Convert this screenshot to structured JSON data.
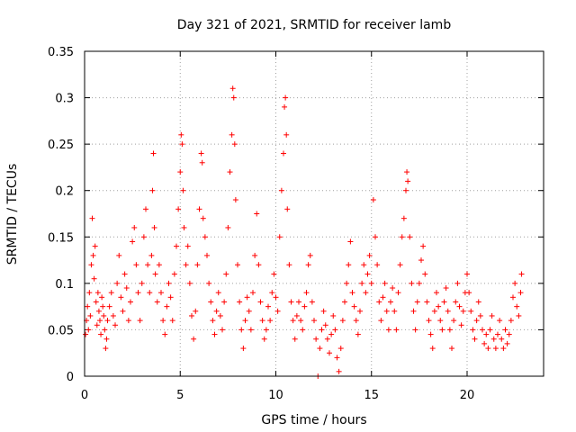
{
  "chart_data": {
    "type": "scatter",
    "title": "Day 321 of 2021, SRMTID for receiver lamb",
    "xlabel": "GPS time / hours",
    "ylabel": "SRMTID / TECUs",
    "xlim": [
      0,
      24
    ],
    "ylim": [
      0,
      0.35
    ],
    "xticks": [
      0,
      5,
      10,
      15,
      20
    ],
    "xtick_labels": [
      "0",
      "5",
      "10",
      "15",
      "20"
    ],
    "yticks": [
      0,
      0.05,
      0.1,
      0.15,
      0.2,
      0.25,
      0.3,
      0.35
    ],
    "ytick_labels": [
      "0",
      "0.05",
      "0.1",
      "0.15",
      "0.2",
      "0.25",
      "0.3",
      "0.35"
    ],
    "grid": true,
    "marker": "+",
    "color": "#ff0000",
    "series": [
      {
        "name": "SRMTID",
        "points": [
          [
            0.05,
            0.045
          ],
          [
            0.1,
            0.06
          ],
          [
            0.15,
            0.075
          ],
          [
            0.2,
            0.05
          ],
          [
            0.25,
            0.09
          ],
          [
            0.3,
            0.065
          ],
          [
            0.35,
            0.12
          ],
          [
            0.4,
            0.17
          ],
          [
            0.45,
            0.13
          ],
          [
            0.5,
            0.105
          ],
          [
            0.55,
            0.14
          ],
          [
            0.6,
            0.08
          ],
          [
            0.65,
            0.055
          ],
          [
            0.7,
            0.09
          ],
          [
            0.75,
            0.07
          ],
          [
            0.8,
            0.06
          ],
          [
            0.85,
            0.045
          ],
          [
            0.9,
            0.085
          ],
          [
            0.95,
            0.075
          ],
          [
            1.0,
            0.065
          ],
          [
            1.05,
            0.05
          ],
          [
            1.1,
            0.03
          ],
          [
            1.15,
            0.04
          ],
          [
            1.2,
            0.06
          ],
          [
            1.3,
            0.075
          ],
          [
            1.4,
            0.09
          ],
          [
            1.5,
            0.065
          ],
          [
            1.6,
            0.055
          ],
          [
            1.7,
            0.1
          ],
          [
            1.8,
            0.13
          ],
          [
            1.9,
            0.085
          ],
          [
            2.0,
            0.07
          ],
          [
            2.1,
            0.11
          ],
          [
            2.2,
            0.095
          ],
          [
            2.3,
            0.06
          ],
          [
            2.4,
            0.08
          ],
          [
            2.5,
            0.145
          ],
          [
            2.6,
            0.16
          ],
          [
            2.7,
            0.12
          ],
          [
            2.8,
            0.09
          ],
          [
            2.9,
            0.06
          ],
          [
            3.0,
            0.1
          ],
          [
            3.1,
            0.15
          ],
          [
            3.2,
            0.18
          ],
          [
            3.3,
            0.12
          ],
          [
            3.4,
            0.09
          ],
          [
            3.5,
            0.13
          ],
          [
            3.55,
            0.2
          ],
          [
            3.6,
            0.24
          ],
          [
            3.65,
            0.16
          ],
          [
            3.7,
            0.11
          ],
          [
            3.8,
            0.08
          ],
          [
            3.9,
            0.12
          ],
          [
            4.0,
            0.09
          ],
          [
            4.1,
            0.06
          ],
          [
            4.2,
            0.045
          ],
          [
            4.3,
            0.075
          ],
          [
            4.4,
            0.1
          ],
          [
            4.5,
            0.085
          ],
          [
            4.6,
            0.06
          ],
          [
            4.7,
            0.11
          ],
          [
            4.8,
            0.14
          ],
          [
            4.9,
            0.18
          ],
          [
            5.0,
            0.22
          ],
          [
            5.05,
            0.26
          ],
          [
            5.1,
            0.25
          ],
          [
            5.15,
            0.2
          ],
          [
            5.2,
            0.16
          ],
          [
            5.3,
            0.12
          ],
          [
            5.4,
            0.14
          ],
          [
            5.5,
            0.1
          ],
          [
            5.6,
            0.065
          ],
          [
            5.7,
            0.04
          ],
          [
            5.8,
            0.07
          ],
          [
            5.9,
            0.12
          ],
          [
            6.0,
            0.18
          ],
          [
            6.1,
            0.24
          ],
          [
            6.15,
            0.23
          ],
          [
            6.2,
            0.17
          ],
          [
            6.3,
            0.15
          ],
          [
            6.4,
            0.13
          ],
          [
            6.5,
            0.1
          ],
          [
            6.6,
            0.08
          ],
          [
            6.7,
            0.06
          ],
          [
            6.8,
            0.045
          ],
          [
            6.9,
            0.07
          ],
          [
            7.0,
            0.09
          ],
          [
            7.1,
            0.065
          ],
          [
            7.2,
            0.05
          ],
          [
            7.3,
            0.08
          ],
          [
            7.4,
            0.11
          ],
          [
            7.5,
            0.16
          ],
          [
            7.6,
            0.22
          ],
          [
            7.7,
            0.26
          ],
          [
            7.75,
            0.31
          ],
          [
            7.8,
            0.3
          ],
          [
            7.85,
            0.25
          ],
          [
            7.9,
            0.19
          ],
          [
            8.0,
            0.12
          ],
          [
            8.1,
            0.08
          ],
          [
            8.2,
            0.05
          ],
          [
            8.3,
            0.03
          ],
          [
            8.4,
            0.06
          ],
          [
            8.5,
            0.085
          ],
          [
            8.6,
            0.07
          ],
          [
            8.7,
            0.05
          ],
          [
            8.8,
            0.09
          ],
          [
            8.9,
            0.13
          ],
          [
            9.0,
            0.175
          ],
          [
            9.1,
            0.12
          ],
          [
            9.2,
            0.08
          ],
          [
            9.3,
            0.06
          ],
          [
            9.4,
            0.04
          ],
          [
            9.5,
            0.05
          ],
          [
            9.6,
            0.075
          ],
          [
            9.7,
            0.06
          ],
          [
            9.8,
            0.09
          ],
          [
            9.9,
            0.11
          ],
          [
            10.0,
            0.085
          ],
          [
            10.1,
            0.07
          ],
          [
            10.2,
            0.15
          ],
          [
            10.3,
            0.2
          ],
          [
            10.4,
            0.24
          ],
          [
            10.45,
            0.29
          ],
          [
            10.5,
            0.3
          ],
          [
            10.55,
            0.26
          ],
          [
            10.6,
            0.18
          ],
          [
            10.7,
            0.12
          ],
          [
            10.8,
            0.08
          ],
          [
            10.9,
            0.06
          ],
          [
            11.0,
            0.04
          ],
          [
            11.1,
            0.065
          ],
          [
            11.2,
            0.08
          ],
          [
            11.3,
            0.06
          ],
          [
            11.4,
            0.05
          ],
          [
            11.5,
            0.075
          ],
          [
            11.6,
            0.09
          ],
          [
            11.7,
            0.12
          ],
          [
            11.8,
            0.13
          ],
          [
            11.9,
            0.08
          ],
          [
            12.0,
            0.06
          ],
          [
            12.1,
            0.04
          ],
          [
            12.2,
            0.0
          ],
          [
            12.3,
            0.03
          ],
          [
            12.4,
            0.05
          ],
          [
            12.5,
            0.07
          ],
          [
            12.6,
            0.055
          ],
          [
            12.7,
            0.04
          ],
          [
            12.8,
            0.025
          ],
          [
            12.9,
            0.045
          ],
          [
            13.0,
            0.065
          ],
          [
            13.1,
            0.05
          ],
          [
            13.2,
            0.02
          ],
          [
            13.3,
            0.005
          ],
          [
            13.4,
            0.03
          ],
          [
            13.5,
            0.06
          ],
          [
            13.6,
            0.08
          ],
          [
            13.7,
            0.1
          ],
          [
            13.8,
            0.12
          ],
          [
            13.9,
            0.145
          ],
          [
            14.0,
            0.09
          ],
          [
            14.1,
            0.075
          ],
          [
            14.2,
            0.06
          ],
          [
            14.3,
            0.045
          ],
          [
            14.4,
            0.07
          ],
          [
            14.5,
            0.1
          ],
          [
            14.6,
            0.12
          ],
          [
            14.7,
            0.09
          ],
          [
            14.8,
            0.11
          ],
          [
            14.9,
            0.13
          ],
          [
            15.0,
            0.1
          ],
          [
            15.1,
            0.19
          ],
          [
            15.2,
            0.15
          ],
          [
            15.3,
            0.12
          ],
          [
            15.4,
            0.08
          ],
          [
            15.5,
            0.06
          ],
          [
            15.6,
            0.085
          ],
          [
            15.7,
            0.1
          ],
          [
            15.8,
            0.07
          ],
          [
            15.9,
            0.05
          ],
          [
            16.0,
            0.08
          ],
          [
            16.1,
            0.095
          ],
          [
            16.2,
            0.07
          ],
          [
            16.3,
            0.05
          ],
          [
            16.4,
            0.09
          ],
          [
            16.5,
            0.12
          ],
          [
            16.6,
            0.15
          ],
          [
            16.7,
            0.17
          ],
          [
            16.8,
            0.2
          ],
          [
            16.85,
            0.22
          ],
          [
            16.9,
            0.21
          ],
          [
            17.0,
            0.15
          ],
          [
            17.1,
            0.1
          ],
          [
            17.2,
            0.07
          ],
          [
            17.3,
            0.05
          ],
          [
            17.4,
            0.08
          ],
          [
            17.5,
            0.1
          ],
          [
            17.6,
            0.125
          ],
          [
            17.7,
            0.14
          ],
          [
            17.8,
            0.11
          ],
          [
            17.9,
            0.08
          ],
          [
            18.0,
            0.06
          ],
          [
            18.1,
            0.045
          ],
          [
            18.2,
            0.03
          ],
          [
            18.3,
            0.07
          ],
          [
            18.4,
            0.09
          ],
          [
            18.5,
            0.075
          ],
          [
            18.6,
            0.06
          ],
          [
            18.7,
            0.05
          ],
          [
            18.8,
            0.08
          ],
          [
            18.9,
            0.095
          ],
          [
            19.0,
            0.07
          ],
          [
            19.1,
            0.05
          ],
          [
            19.2,
            0.03
          ],
          [
            19.3,
            0.06
          ],
          [
            19.4,
            0.08
          ],
          [
            19.5,
            0.1
          ],
          [
            19.6,
            0.075
          ],
          [
            19.7,
            0.055
          ],
          [
            19.8,
            0.07
          ],
          [
            19.9,
            0.09
          ],
          [
            20.0,
            0.11
          ],
          [
            20.1,
            0.09
          ],
          [
            20.2,
            0.07
          ],
          [
            20.3,
            0.05
          ],
          [
            20.4,
            0.04
          ],
          [
            20.5,
            0.06
          ],
          [
            20.6,
            0.08
          ],
          [
            20.7,
            0.065
          ],
          [
            20.8,
            0.05
          ],
          [
            20.9,
            0.035
          ],
          [
            21.0,
            0.045
          ],
          [
            21.1,
            0.03
          ],
          [
            21.2,
            0.05
          ],
          [
            21.3,
            0.065
          ],
          [
            21.4,
            0.04
          ],
          [
            21.5,
            0.03
          ],
          [
            21.6,
            0.045
          ],
          [
            21.7,
            0.06
          ],
          [
            21.8,
            0.04
          ],
          [
            21.9,
            0.03
          ],
          [
            22.0,
            0.05
          ],
          [
            22.1,
            0.035
          ],
          [
            22.2,
            0.045
          ],
          [
            22.3,
            0.06
          ],
          [
            22.4,
            0.085
          ],
          [
            22.5,
            0.1
          ],
          [
            22.6,
            0.075
          ],
          [
            22.7,
            0.065
          ],
          [
            22.8,
            0.09
          ],
          [
            22.85,
            0.11
          ]
        ]
      }
    ]
  }
}
